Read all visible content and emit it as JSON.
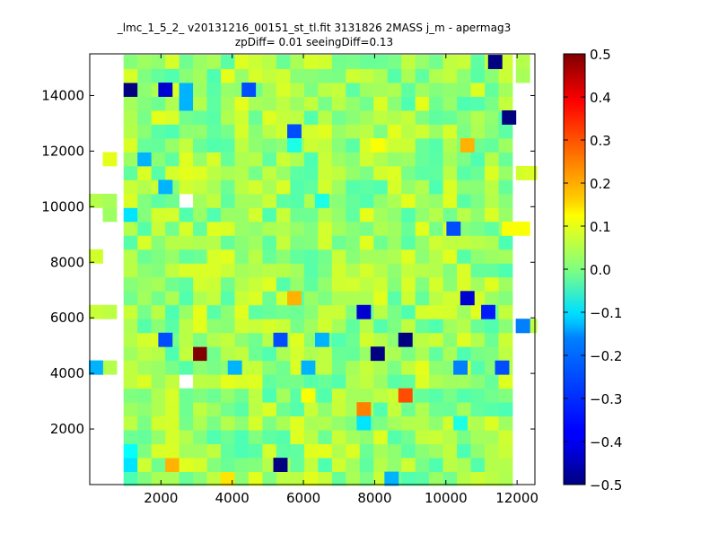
{
  "chart_data": {
    "type": "heatmap",
    "title_line1": "_lmc_1_5_2_ v20131216_00151_st_tl.fit 3131826 2MASS j_m - apermag3",
    "title_line2": "zpDiff= 0.01 seeingDiff=0.13",
    "xlim": [
      0,
      12500
    ],
    "ylim": [
      0,
      15500
    ],
    "xticks": [
      2000,
      4000,
      6000,
      8000,
      10000,
      12000
    ],
    "xtick_labels": [
      "2000",
      "4000",
      "6000",
      "8000",
      "10000",
      "12000"
    ],
    "yticks": [
      2000,
      4000,
      6000,
      8000,
      10000,
      12000,
      14000
    ],
    "ytick_labels": [
      "2000",
      "4000",
      "6000",
      "8000",
      "10000",
      "12000",
      "14000"
    ],
    "colorbar": {
      "colormap": "jet",
      "min": -0.5,
      "max": 0.5,
      "ticks": [
        -0.5,
        -0.4,
        -0.3,
        -0.2,
        -0.1,
        0.0,
        0.1,
        0.2,
        0.3,
        0.4,
        0.5
      ],
      "tick_labels": [
        "−0.5",
        "−0.4",
        "−0.3",
        "−0.2",
        "−0.1",
        "0.0",
        "0.1",
        "0.2",
        "0.3",
        "0.4",
        "0.5"
      ]
    },
    "grid": false,
    "cell_size": [
      390,
      500
    ],
    "base_value_range": [
      -0.05,
      0.1
    ],
    "highlighted_cells": [
      {
        "x": 3095,
        "y": 4715,
        "value": 0.5
      },
      {
        "x": 8860,
        "y": 3215,
        "value": 0.3
      },
      {
        "x": 7690,
        "y": 2715,
        "value": 0.25
      },
      {
        "x": 5740,
        "y": 6715,
        "value": 0.2
      },
      {
        "x": 10600,
        "y": 12215,
        "value": 0.2
      },
      {
        "x": 2315,
        "y": 715,
        "value": 0.2
      },
      {
        "x": 3875,
        "y": 215,
        "value": 0.15
      },
      {
        "x": 8080,
        "y": 12215,
        "value": 0.12
      },
      {
        "x": 6130,
        "y": 3215,
        "value": 0.12
      },
      {
        "x": 11770,
        "y": 9215,
        "value": 0.12
      },
      {
        "x": 1145,
        "y": 14215,
        "value": -0.5
      },
      {
        "x": 11380,
        "y": 15215,
        "value": -0.5
      },
      {
        "x": 11770,
        "y": 13215,
        "value": -0.5
      },
      {
        "x": 8080,
        "y": 4715,
        "value": -0.5
      },
      {
        "x": 8860,
        "y": 5215,
        "value": -0.5
      },
      {
        "x": 5350,
        "y": 715,
        "value": -0.5
      },
      {
        "x": 2120,
        "y": 14215,
        "value": -0.42
      },
      {
        "x": 7690,
        "y": 6215,
        "value": -0.42
      },
      {
        "x": 10600,
        "y": 6715,
        "value": -0.42
      },
      {
        "x": 11185,
        "y": 6215,
        "value": -0.35
      },
      {
        "x": 2120,
        "y": 5215,
        "value": -0.3
      },
      {
        "x": 4460,
        "y": 14215,
        "value": -0.3
      },
      {
        "x": 10210,
        "y": 9215,
        "value": -0.3
      },
      {
        "x": 5350,
        "y": 5215,
        "value": -0.3
      },
      {
        "x": 5740,
        "y": 12715,
        "value": -0.3
      },
      {
        "x": 11575,
        "y": 4215,
        "value": -0.3
      },
      {
        "x": 10405,
        "y": 4215,
        "value": -0.25
      },
      {
        "x": 12160,
        "y": 5715,
        "value": -0.25
      },
      {
        "x": 1535,
        "y": 11715,
        "value": -0.2
      },
      {
        "x": 2120,
        "y": 10715,
        "value": -0.2
      },
      {
        "x": 2705,
        "y": 14215,
        "value": -0.2
      },
      {
        "x": 2705,
        "y": 13715,
        "value": -0.2
      },
      {
        "x": 6130,
        "y": 4215,
        "value": -0.2
      },
      {
        "x": 6520,
        "y": 5215,
        "value": -0.2
      },
      {
        "x": 4070,
        "y": 4215,
        "value": -0.2
      },
      {
        "x": 8470,
        "y": 215,
        "value": -0.2
      },
      {
        "x": 170,
        "y": 4215,
        "value": -0.2
      },
      {
        "x": 7690,
        "y": 2215,
        "value": -0.15
      },
      {
        "x": 1145,
        "y": 9715,
        "value": -0.15
      },
      {
        "x": 1145,
        "y": 715,
        "value": -0.15
      },
      {
        "x": 1145,
        "y": 1215,
        "value": -0.12
      },
      {
        "x": 10405,
        "y": 2215,
        "value": -0.1
      },
      {
        "x": 5740,
        "y": 12215,
        "value": -0.1
      },
      {
        "x": 6520,
        "y": 10215,
        "value": -0.1
      }
    ],
    "empty_cells": [
      {
        "x": 11380,
        "y": 1215
      },
      {
        "x": 11380,
        "y": 1715
      },
      {
        "x": 11380,
        "y": 2215
      },
      {
        "x": 11380,
        "y": 3215
      },
      {
        "x": 11380,
        "y": 3715
      },
      {
        "x": 11770,
        "y": 2215
      },
      {
        "x": 11770,
        "y": 2715
      },
      {
        "x": 11770,
        "y": 3215
      },
      {
        "x": 11770,
        "y": 4715
      },
      {
        "x": 11770,
        "y": 5215
      },
      {
        "x": 11770,
        "y": 6715
      },
      {
        "x": 11770,
        "y": 7215
      },
      {
        "x": 11770,
        "y": 7715
      },
      {
        "x": 11770,
        "y": 8215
      },
      {
        "x": 11770,
        "y": 10215
      },
      {
        "x": 11770,
        "y": 10715
      },
      {
        "x": 11770,
        "y": 11215
      },
      {
        "x": 11770,
        "y": 12215
      },
      {
        "x": 11770,
        "y": 12715
      },
      {
        "x": 11770,
        "y": 14215
      },
      {
        "x": 11770,
        "y": 14715
      },
      {
        "x": 9250,
        "y": 1215
      },
      {
        "x": 9640,
        "y": 715
      },
      {
        "x": 9640,
        "y": 1215
      },
      {
        "x": 10015,
        "y": 1715
      },
      {
        "x": 10210,
        "y": 215
      },
      {
        "x": 2120,
        "y": 2215
      },
      {
        "x": 2705,
        "y": 3715
      },
      {
        "x": 4070,
        "y": 5215
      },
      {
        "x": 4850,
        "y": 5715
      },
      {
        "x": 5740,
        "y": 5715
      },
      {
        "x": 7300,
        "y": 9715
      },
      {
        "x": 7300,
        "y": 9215
      },
      {
        "x": 8470,
        "y": 9215
      },
      {
        "x": 6520,
        "y": 9215
      },
      {
        "x": 2705,
        "y": 10215
      },
      {
        "x": 9640,
        "y": 10715
      },
      {
        "x": 10990,
        "y": 11215
      },
      {
        "x": 11185,
        "y": 11215
      },
      {
        "x": 9250,
        "y": 15215
      },
      {
        "x": 10015,
        "y": 6215
      },
      {
        "x": 10405,
        "y": 6215
      },
      {
        "x": 9640,
        "y": 4215
      },
      {
        "x": 10990,
        "y": 5215
      },
      {
        "x": 10600,
        "y": 8715
      },
      {
        "x": 10600,
        "y": 7215
      },
      {
        "x": 11380,
        "y": 9715
      },
      {
        "x": 10990,
        "y": 3715
      },
      {
        "x": 8860,
        "y": 2715
      }
    ]
  }
}
